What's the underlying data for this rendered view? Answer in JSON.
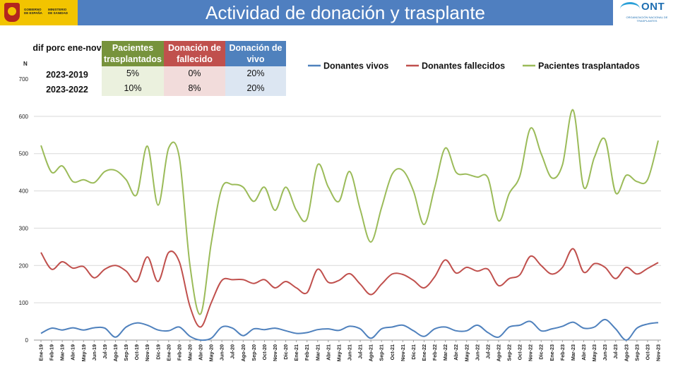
{
  "header": {
    "title": "Actividad de donación y trasplante",
    "logo_left": {
      "line1": "GOBIERNO",
      "line2": "DE ESPAÑA",
      "line3": "MINISTERIO",
      "line4": "DE SANIDAD"
    },
    "logo_right": {
      "name": "ONT",
      "sub": "ORGANIZACIÓN NACIONAL DE TRASPLANTES"
    }
  },
  "table": {
    "corner": "dif porc ene-nov",
    "headers": [
      "Pacientes trasplantados",
      "Donación de fallecido",
      "Donación de vivo"
    ],
    "header_colors": [
      "#77933c",
      "#c0504d",
      "#4f81bd"
    ],
    "cell_colors": [
      "#ebf1de",
      "#f2dcdb",
      "#dce6f2"
    ],
    "rows": [
      {
        "label": "2023-2019",
        "values": [
          "5%",
          "0%",
          "20%"
        ]
      },
      {
        "label": "2023-2022",
        "values": [
          "10%",
          "8%",
          "20%"
        ]
      }
    ]
  },
  "chart_data": {
    "type": "line",
    "ylabel": "N",
    "ylim": [
      0,
      700
    ],
    "yticks": [
      0,
      100,
      200,
      300,
      400,
      500,
      600,
      700
    ],
    "grid": true,
    "legend": "top-right",
    "categories": [
      "Ene-19",
      "Feb-19",
      "Mar-19",
      "Abr-19",
      "May-19",
      "Jun-19",
      "Jul-19",
      "Ago-19",
      "Sep-19",
      "Oct-19",
      "Nov-19",
      "Dic-19",
      "Ene-20",
      "Feb-20",
      "Mar-20",
      "Abr-20",
      "May-20",
      "Jun-20",
      "Jul-20",
      "Ago-20",
      "Sep-20",
      "Oct-20",
      "Nov-20",
      "Dic-20",
      "Ene-21",
      "Feb-21",
      "Mar-21",
      "Abr-21",
      "May-21",
      "Jun-21",
      "Jul-21",
      "Ago-21",
      "Sep-21",
      "Oct-21",
      "Nov-21",
      "Dic-21",
      "Ene-22",
      "Feb-22",
      "Mar-22",
      "Abr-22",
      "May-22",
      "Jun-22",
      "Jul-22",
      "Ago-22",
      "Sep-22",
      "Oct-22",
      "Nov-22",
      "Dic-22",
      "Ene-23",
      "Feb-23",
      "Mar-23",
      "Abr-23",
      "May-23",
      "Jun-23",
      "Jul-23",
      "Ago-23",
      "Sep-23",
      "Oct-23",
      "Nov-23"
    ],
    "series": [
      {
        "name": "Donantes vivos",
        "color": "#4f81bd",
        "values": [
          18,
          32,
          27,
          33,
          27,
          33,
          32,
          8,
          35,
          46,
          40,
          27,
          25,
          35,
          10,
          0,
          5,
          35,
          32,
          12,
          30,
          28,
          32,
          25,
          18,
          20,
          28,
          30,
          26,
          37,
          30,
          5,
          30,
          35,
          40,
          25,
          10,
          30,
          35,
          25,
          25,
          40,
          20,
          8,
          35,
          40,
          50,
          25,
          30,
          37,
          48,
          32,
          35,
          55,
          30,
          0,
          32,
          43,
          47
        ]
      },
      {
        "name": "Donantes fallecidos",
        "color": "#c0504d",
        "values": [
          235,
          190,
          210,
          193,
          197,
          167,
          190,
          200,
          185,
          157,
          223,
          157,
          235,
          210,
          90,
          35,
          100,
          160,
          162,
          162,
          152,
          162,
          140,
          157,
          140,
          127,
          190,
          155,
          160,
          178,
          150,
          122,
          150,
          177,
          176,
          160,
          140,
          170,
          215,
          180,
          195,
          185,
          190,
          146,
          165,
          175,
          225,
          200,
          177,
          195,
          245,
          182,
          205,
          195,
          165,
          195,
          177,
          192,
          208
        ]
      },
      {
        "name": "Pacientes trasplantados",
        "color": "#9bbb59",
        "values": [
          522,
          450,
          467,
          425,
          430,
          422,
          452,
          455,
          430,
          390,
          520,
          362,
          515,
          490,
          200,
          70,
          260,
          408,
          417,
          410,
          372,
          410,
          348,
          410,
          348,
          325,
          470,
          410,
          372,
          452,
          350,
          263,
          355,
          445,
          455,
          400,
          310,
          410,
          515,
          450,
          445,
          437,
          435,
          320,
          393,
          440,
          568,
          500,
          435,
          470,
          617,
          410,
          490,
          538,
          395,
          442,
          425,
          430,
          535
        ]
      }
    ]
  }
}
